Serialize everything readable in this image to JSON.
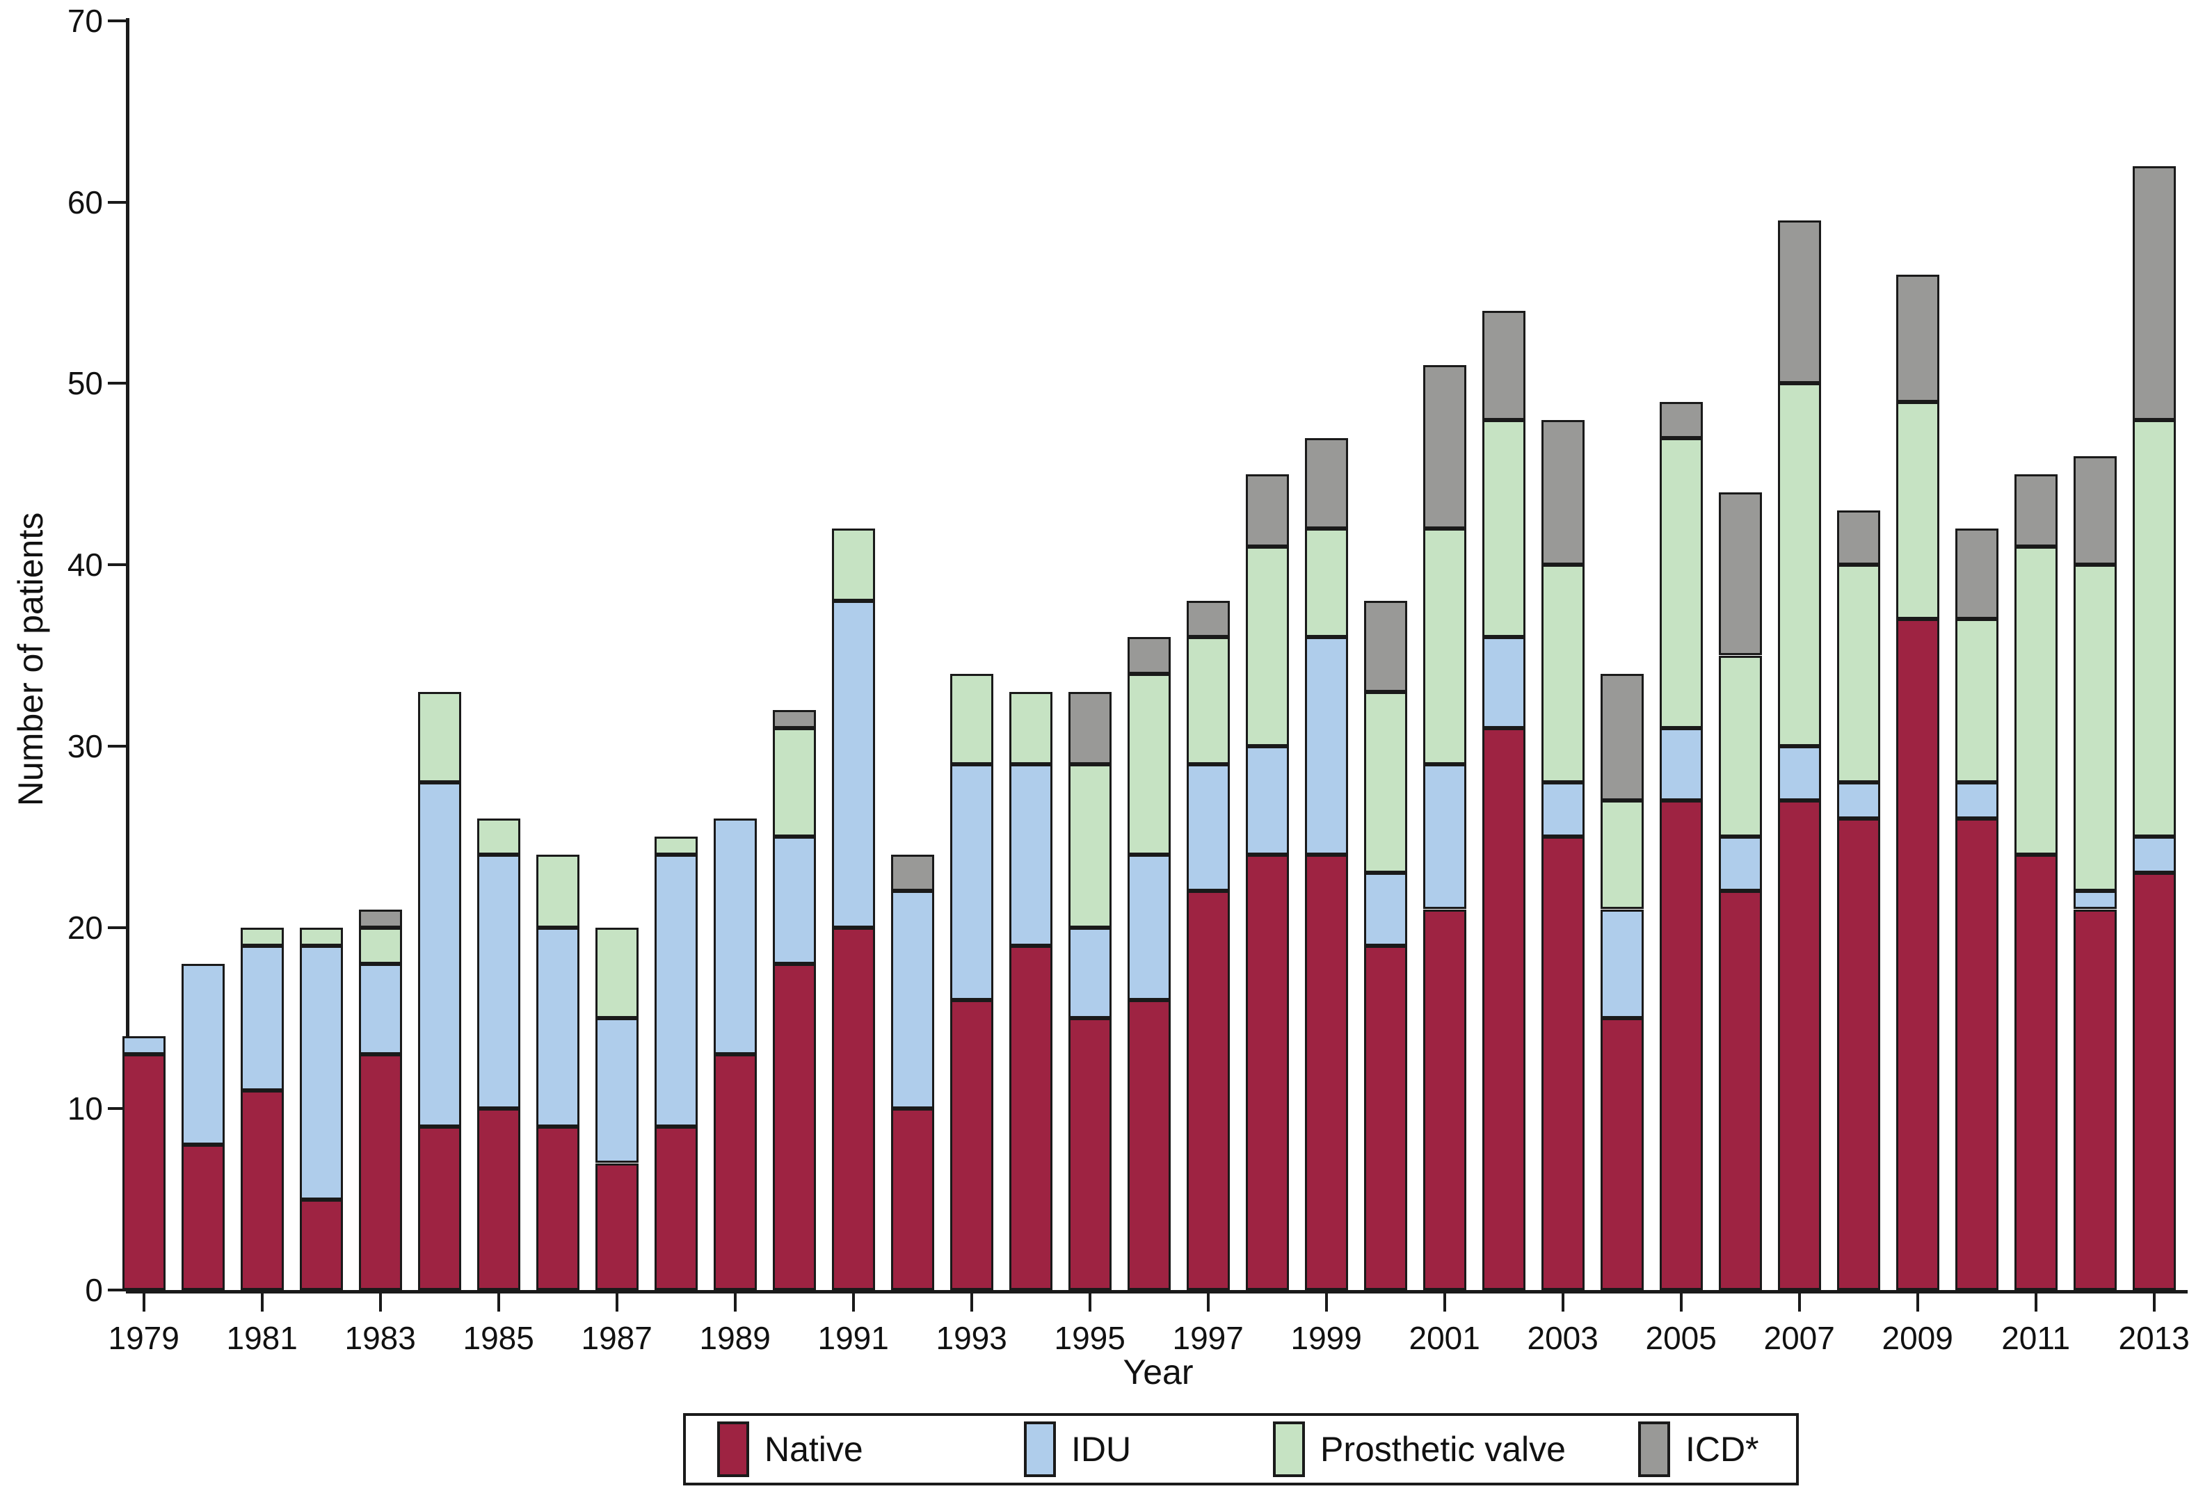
{
  "figure": {
    "ylabel": "Number of patients",
    "xlabel": "Year",
    "background_color": "#ffffff",
    "axis_color": "#1a1a1a"
  },
  "chart_data": {
    "type": "bar",
    "stacked": true,
    "title": "",
    "xlabel": "Year",
    "ylabel": "Number of patients",
    "ylim": [
      0,
      70
    ],
    "yticks": [
      0,
      10,
      20,
      30,
      40,
      50,
      60,
      70
    ],
    "xtick_labels": [
      "1979",
      "1981",
      "1983",
      "1985",
      "1987",
      "1989",
      "1991",
      "1993",
      "1995",
      "1997",
      "1999",
      "2001",
      "2003",
      "2005",
      "2007",
      "2009",
      "2011",
      "2013"
    ],
    "grid": false,
    "legend_position": "bottom",
    "bar_border_color": "#1a1a1a",
    "categories": [
      1979,
      1980,
      1981,
      1982,
      1983,
      1984,
      1985,
      1986,
      1987,
      1988,
      1989,
      1990,
      1991,
      1992,
      1993,
      1994,
      1995,
      1996,
      1997,
      1998,
      1999,
      2000,
      2001,
      2002,
      2003,
      2004,
      2005,
      2006,
      2007,
      2008,
      2009,
      2010,
      2011,
      2012,
      2013
    ],
    "series": [
      {
        "name": "Native",
        "color": "#9e2342",
        "values": [
          13,
          8,
          11,
          5,
          13,
          9,
          10,
          9,
          7,
          9,
          13,
          18,
          20,
          10,
          16,
          19,
          15,
          16,
          22,
          24,
          24,
          19,
          21,
          31,
          25,
          15,
          27,
          22,
          27,
          26,
          37,
          26,
          24,
          21,
          23
        ]
      },
      {
        "name": "IDU",
        "color": "#afcdeb",
        "values": [
          1,
          10,
          8,
          14,
          5,
          19,
          14,
          11,
          8,
          15,
          13,
          7,
          18,
          12,
          13,
          10,
          5,
          8,
          7,
          6,
          12,
          4,
          8,
          5,
          3,
          6,
          4,
          3,
          3,
          2,
          0,
          2,
          0,
          1,
          2
        ]
      },
      {
        "name": "Prosthetic valve",
        "color": "#c6e3c3",
        "values": [
          0,
          0,
          1,
          1,
          2,
          5,
          2,
          4,
          5,
          1,
          0,
          6,
          4,
          0,
          5,
          4,
          9,
          10,
          7,
          11,
          6,
          10,
          13,
          12,
          12,
          6,
          16,
          10,
          20,
          12,
          12,
          9,
          17,
          18,
          23
        ]
      },
      {
        "name": "ICD*",
        "color": "#999997",
        "values": [
          0,
          0,
          0,
          0,
          1,
          0,
          0,
          0,
          0,
          0,
          0,
          1,
          0,
          2,
          0,
          0,
          4,
          2,
          2,
          4,
          5,
          5,
          9,
          6,
          8,
          7,
          2,
          9,
          9,
          3,
          7,
          5,
          4,
          6,
          14
        ]
      }
    ],
    "totals": [
      14,
      18,
      20,
      20,
      21,
      33,
      26,
      24,
      20,
      25,
      26,
      32,
      42,
      24,
      34,
      33,
      33,
      36,
      38,
      45,
      47,
      38,
      51,
      54,
      48,
      34,
      49,
      44,
      59,
      43,
      56,
      42,
      45,
      46,
      62
    ]
  },
  "legend": {
    "items": [
      "Native",
      "IDU",
      "Prosthetic valve",
      "ICD*"
    ]
  }
}
